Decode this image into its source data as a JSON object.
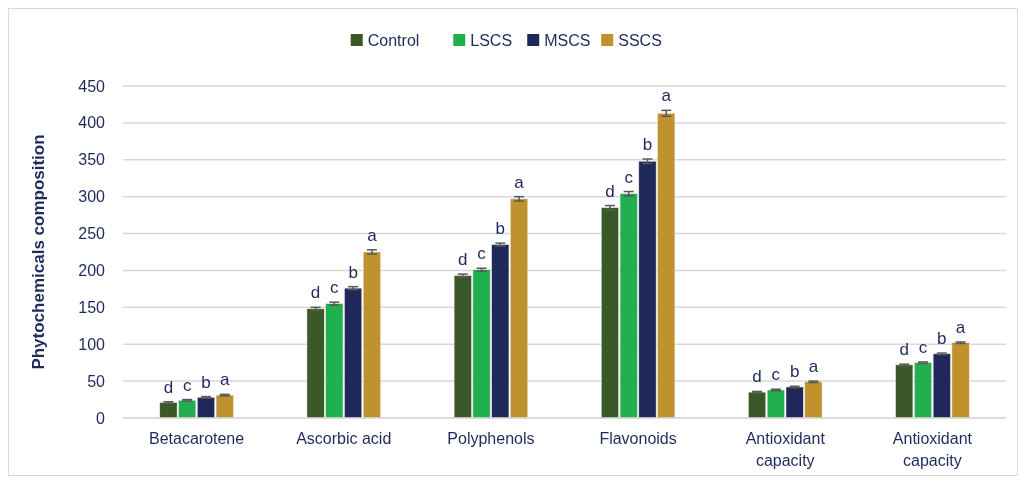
{
  "chart_data": {
    "type": "bar",
    "ylabel": "Phytochemicals composition",
    "categories": [
      "Betacarotene",
      "Ascorbic acid",
      "Polyphenols",
      "Flavonoids",
      "Antioxidant capacity",
      "Antioxidant capacity"
    ],
    "series": [
      {
        "name": "Control",
        "color": "#3b5829",
        "values": [
          21,
          148,
          193,
          285,
          35,
          72
        ],
        "errors": [
          1,
          2,
          2,
          3,
          1,
          1
        ],
        "value_labels": [
          "d",
          "d",
          "d",
          "d",
          "d",
          "d"
        ]
      },
      {
        "name": "LSCS",
        "color": "#21b04f",
        "values": [
          24,
          155,
          201,
          304,
          38,
          75
        ],
        "errors": [
          1,
          2,
          2,
          3,
          1,
          1
        ],
        "value_labels": [
          "c",
          "c",
          "c",
          "c",
          "c",
          "c"
        ]
      },
      {
        "name": "MSCS",
        "color": "#1f275b",
        "values": [
          28,
          176,
          235,
          348,
          42,
          87
        ],
        "errors": [
          1,
          2,
          2,
          3,
          1,
          1
        ],
        "value_labels": [
          "b",
          "b",
          "b",
          "b",
          "b",
          "b"
        ]
      },
      {
        "name": "SSCS",
        "color": "#bf922e",
        "values": [
          31,
          225,
          297,
          413,
          49,
          102
        ],
        "errors": [
          1,
          3,
          3,
          4,
          1,
          1
        ],
        "value_labels": [
          "a",
          "a",
          "a",
          "a",
          "a",
          "a"
        ]
      }
    ],
    "ylim": [
      0,
      450
    ],
    "yticks": [
      0,
      50,
      100,
      150,
      200,
      250,
      300,
      350,
      400,
      450
    ],
    "grid": "y",
    "legend": "top"
  }
}
